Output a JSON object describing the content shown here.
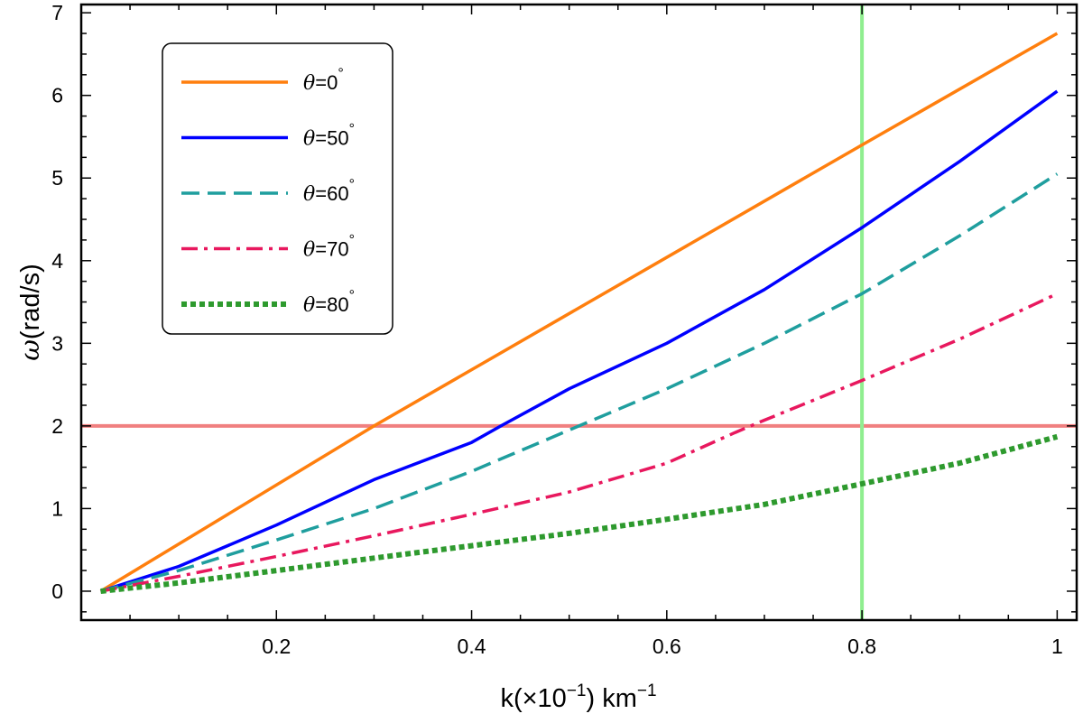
{
  "chart_data": {
    "type": "line",
    "xlabel": {
      "base": "k(×10",
      "sup1": "−1",
      "mid": ") km",
      "sup2": "−1"
    },
    "ylabel": {
      "symbol": "ω",
      "rest": "(rad/s)"
    },
    "xlim": [
      0,
      1.02
    ],
    "ylim": [
      -0.35,
      7.1
    ],
    "x_ticks": [
      0.2,
      0.4,
      0.6,
      0.8,
      1.0
    ],
    "x_tick_labels": [
      "0.2",
      "0.4",
      "0.6",
      "0.8",
      "1"
    ],
    "y_ticks": [
      0,
      1,
      2,
      3,
      4,
      5,
      6,
      7
    ],
    "y_tick_labels": [
      "0",
      "1",
      "2",
      "3",
      "4",
      "5",
      "6",
      "7"
    ],
    "reference_lines": [
      {
        "orientation": "horizontal",
        "value": 2,
        "color": "#f08080"
      },
      {
        "orientation": "vertical",
        "value": 0.8,
        "color": "#90ee90"
      }
    ],
    "legend_position": "upper-left",
    "series": [
      {
        "name": "θ=0°",
        "label_var": "θ",
        "label_rest": "=0",
        "label_sup": "°",
        "color": "#ff7f0e",
        "style": "solid",
        "x": [
          0.02,
          0.3,
          0.8,
          1.0
        ],
        "y": [
          0,
          2.0,
          5.4,
          6.75
        ]
      },
      {
        "name": "θ=50°",
        "label_var": "θ",
        "label_rest": "=50",
        "label_sup": "°",
        "color": "#0000ff",
        "style": "solid",
        "x": [
          0.02,
          0.1,
          0.2,
          0.3,
          0.4,
          0.43,
          0.5,
          0.6,
          0.7,
          0.8,
          0.9,
          1.0
        ],
        "y": [
          0,
          0.3,
          0.8,
          1.35,
          1.8,
          2.0,
          2.45,
          3.0,
          3.65,
          4.4,
          5.2,
          6.05
        ]
      },
      {
        "name": "θ=60°",
        "label_var": "θ",
        "label_rest": "=60",
        "label_sup": "°",
        "color": "#1f9e9e",
        "style": "dashed",
        "x": [
          0.02,
          0.1,
          0.2,
          0.3,
          0.4,
          0.51,
          0.6,
          0.7,
          0.8,
          0.9,
          1.0
        ],
        "y": [
          0,
          0.25,
          0.62,
          1.0,
          1.45,
          2.0,
          2.45,
          3.0,
          3.6,
          4.3,
          5.05
        ]
      },
      {
        "name": "θ=70°",
        "label_var": "θ",
        "label_rest": "=70",
        "label_sup": "°",
        "color": "#e8185e",
        "style": "dashdot",
        "x": [
          0.02,
          0.1,
          0.2,
          0.3,
          0.4,
          0.5,
          0.6,
          0.67,
          0.7,
          0.8,
          0.9,
          1.0
        ],
        "y": [
          0,
          0.18,
          0.42,
          0.67,
          0.93,
          1.2,
          1.55,
          1.92,
          2.07,
          2.55,
          3.05,
          3.6
        ]
      },
      {
        "name": "θ=80°",
        "label_var": "θ",
        "label_rest": "=80",
        "label_sup": "°",
        "color": "#2e9a2e",
        "style": "dotted",
        "x": [
          0.02,
          0.1,
          0.2,
          0.3,
          0.4,
          0.5,
          0.6,
          0.7,
          0.8,
          0.9,
          1.0
        ],
        "y": [
          0,
          0.1,
          0.25,
          0.4,
          0.55,
          0.7,
          0.87,
          1.05,
          1.3,
          1.55,
          1.87
        ]
      }
    ]
  }
}
